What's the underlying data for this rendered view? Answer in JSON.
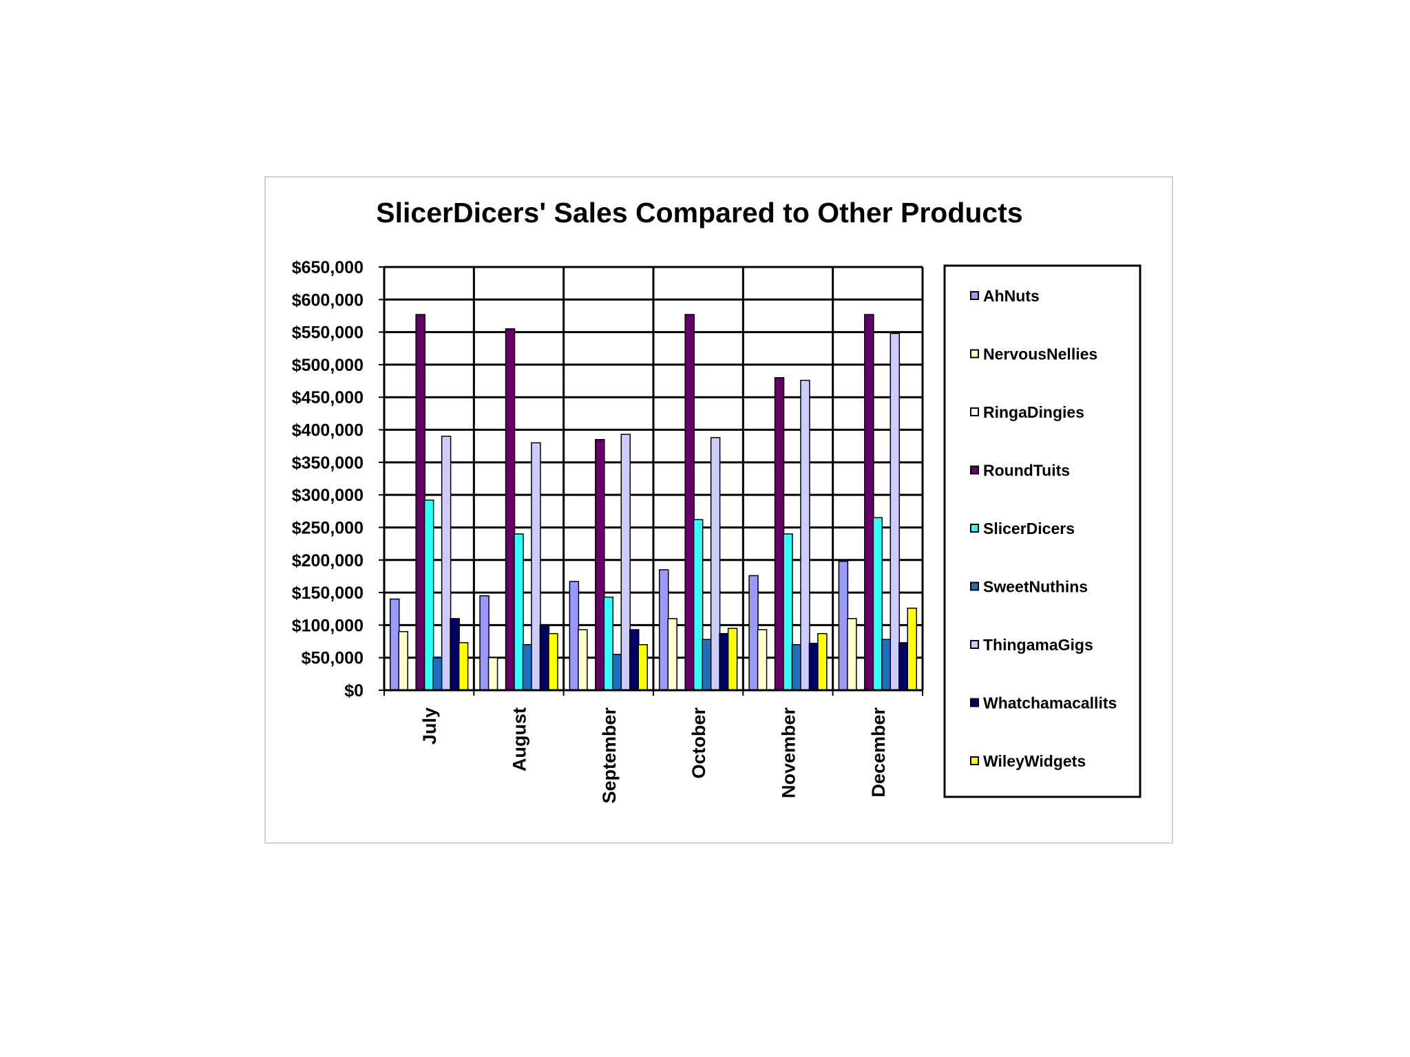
{
  "chart_data": {
    "type": "bar",
    "title": "SlicerDicers' Sales Compared to Other Products",
    "xlabel": "",
    "ylabel": "",
    "ylim": [
      0,
      650000
    ],
    "y_ticks": [
      "$0",
      "$50,000",
      "$100,000",
      "$150,000",
      "$200,000",
      "$250,000",
      "$300,000",
      "$350,000",
      "$400,000",
      "$450,000",
      "$500,000",
      "$550,000",
      "$600,000",
      "$650,000"
    ],
    "grid": true,
    "legend_position": "right",
    "categories": [
      "July",
      "August",
      "September",
      "October",
      "November",
      "December"
    ],
    "series": [
      {
        "name": "AhNuts",
        "color": "#9999ff",
        "values": [
          140000,
          145000,
          167000,
          185000,
          176000,
          198000
        ]
      },
      {
        "name": "NervousNellies",
        "color": "#ffffcc",
        "values": [
          90000,
          50000,
          93000,
          110000,
          93000,
          110000
        ]
      },
      {
        "name": "RingaDingies",
        "color": "#ffffff",
        "values": [
          0,
          0,
          0,
          0,
          0,
          0
        ]
      },
      {
        "name": "RoundTuits",
        "color": "#660066",
        "values": [
          577000,
          555000,
          385000,
          577000,
          480000,
          577000
        ]
      },
      {
        "name": "SlicerDicers",
        "color": "#33ffff",
        "values": [
          292000,
          240000,
          143000,
          262000,
          240000,
          265000
        ]
      },
      {
        "name": "SweetNuthins",
        "color": "#1f6fbf",
        "values": [
          50000,
          70000,
          55000,
          78000,
          70000,
          78000
        ]
      },
      {
        "name": "ThingamaGigs",
        "color": "#ccccff",
        "values": [
          390000,
          380000,
          393000,
          388000,
          476000,
          548000
        ]
      },
      {
        "name": "Whatchamacallits",
        "color": "#000066",
        "values": [
          110000,
          100000,
          93000,
          87000,
          72000,
          73000
        ]
      },
      {
        "name": "WileyWidgets",
        "color": "#ffff00",
        "values": [
          73000,
          87000,
          70000,
          95000,
          87000,
          126000
        ]
      }
    ]
  }
}
